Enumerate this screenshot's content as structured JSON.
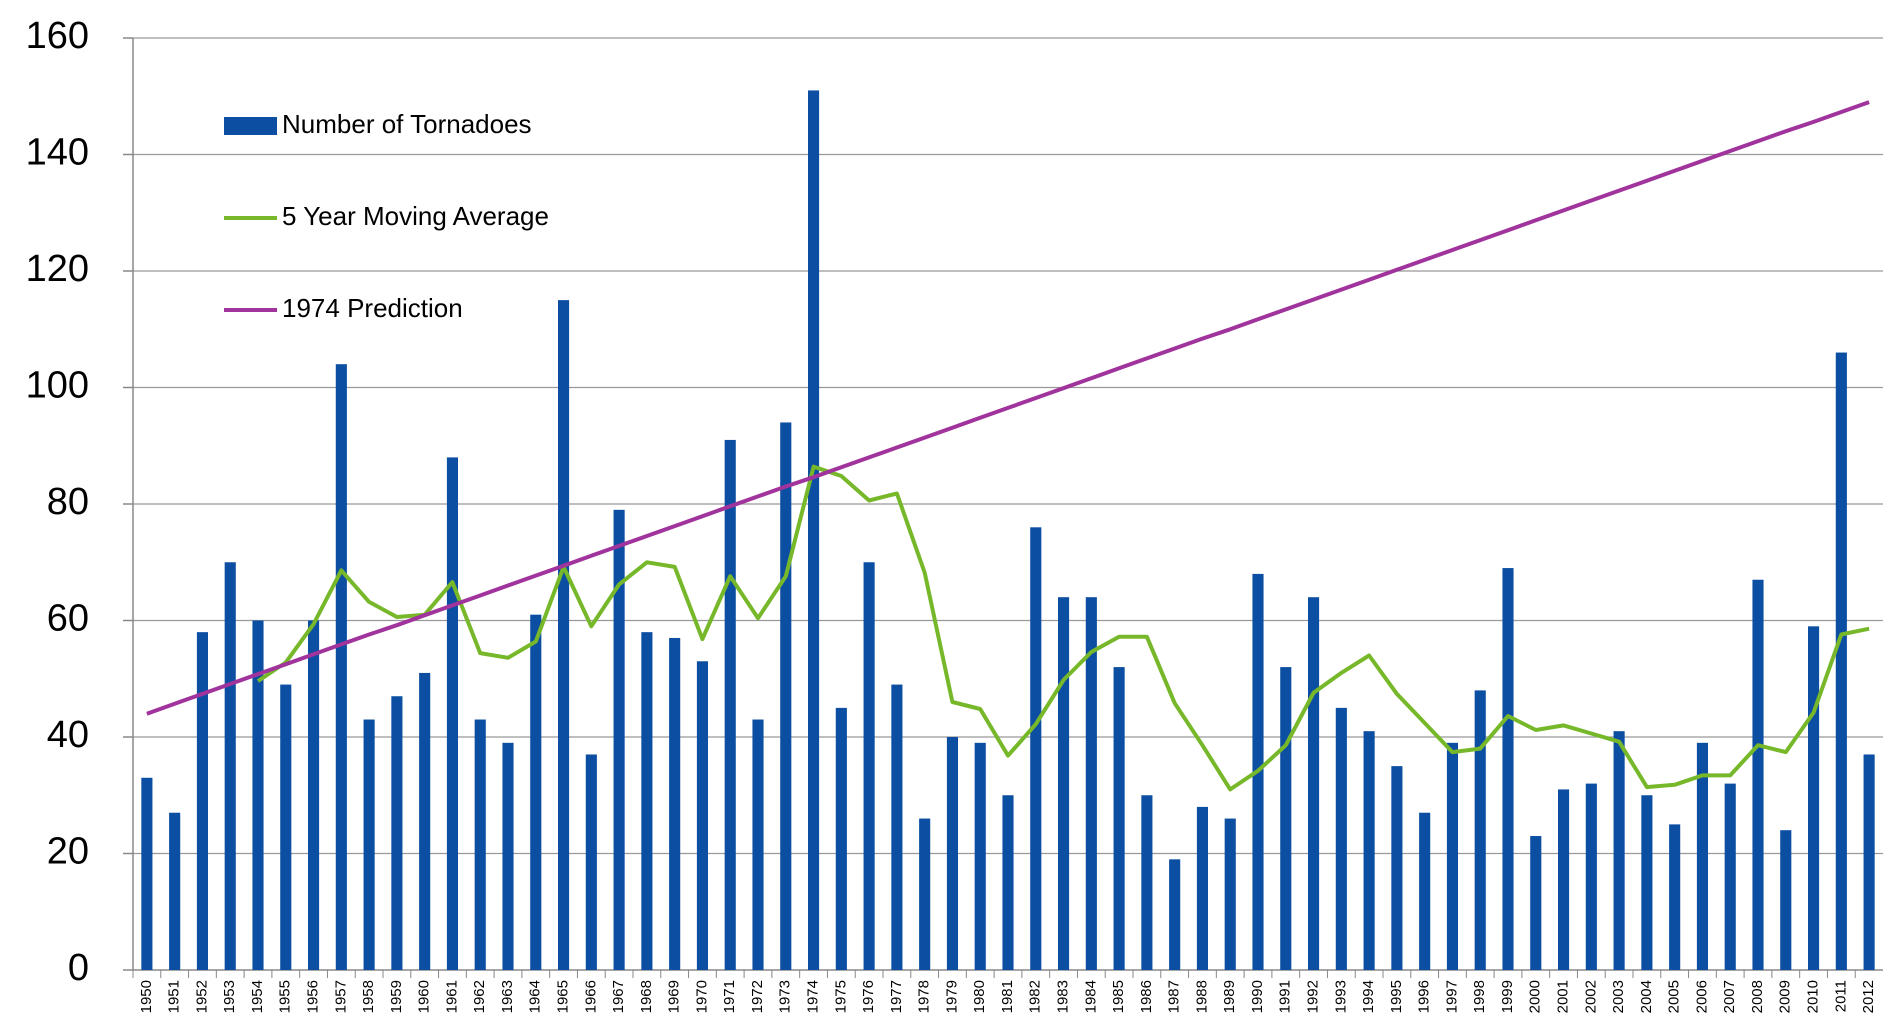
{
  "chart_data": {
    "type": "bar_line",
    "categories": [
      "1950",
      "1951",
      "1952",
      "1953",
      "1954",
      "1955",
      "1956",
      "1957",
      "1958",
      "1959",
      "1960",
      "1961",
      "1962",
      "1963",
      "1964",
      "1965",
      "1966",
      "1967",
      "1968",
      "1969",
      "1970",
      "1971",
      "1972",
      "1973",
      "1974",
      "1975",
      "1976",
      "1977",
      "1978",
      "1979",
      "1980",
      "1981",
      "1982",
      "1983",
      "1984",
      "1985",
      "1986",
      "1987",
      "1988",
      "1989",
      "1990",
      "1991",
      "1992",
      "1993",
      "1994",
      "1995",
      "1996",
      "1997",
      "1998",
      "1999",
      "2000",
      "2001",
      "2002",
      "2003",
      "2004",
      "2005",
      "2006",
      "2007",
      "2008",
      "2009",
      "2010",
      "2011",
      "2012"
    ],
    "series": [
      {
        "name": "Number of Tornadoes",
        "kind": "bar",
        "color": "#0b4ea2",
        "values": [
          33,
          27,
          58,
          70,
          60,
          49,
          60,
          104,
          43,
          47,
          51,
          88,
          43,
          39,
          61,
          115,
          37,
          79,
          58,
          57,
          53,
          91,
          43,
          94,
          151,
          45,
          70,
          49,
          26,
          40,
          39,
          30,
          76,
          64,
          64,
          52,
          30,
          19,
          28,
          26,
          68,
          52,
          64,
          45,
          41,
          35,
          27,
          39,
          48,
          69,
          23,
          31,
          32,
          41,
          30,
          25,
          39,
          32,
          67,
          24,
          59,
          106,
          37
        ]
      },
      {
        "name": "5 Year Moving Average",
        "kind": "line",
        "color": "#77b82a",
        "values": [
          null,
          null,
          null,
          null,
          49.6,
          52.8,
          59.4,
          68.6,
          63.2,
          60.6,
          61,
          66.6,
          54.4,
          53.6,
          56.4,
          69.2,
          59,
          66.2,
          70,
          69.2,
          56.8,
          67.6,
          60.4,
          67.6,
          86.4,
          84.8,
          80.6,
          81.8,
          68.2,
          46,
          44.8,
          36.8,
          42.2,
          49.8,
          54.6,
          57.2,
          57.2,
          45.8,
          38.6,
          31,
          34.2,
          38.6,
          47.6,
          51,
          54,
          47.4,
          42.4,
          37.4,
          38,
          43.6,
          41.2,
          42,
          40.6,
          39.2,
          31.4,
          31.8,
          33.4,
          33.4,
          38.6,
          37.4,
          44.2,
          57.6,
          58.6
        ]
      },
      {
        "name": "1974 Prediction",
        "kind": "line",
        "color": "#a0339c",
        "values": [
          44.0,
          45.7,
          47.4,
          49.1,
          50.8,
          52.5,
          54.2,
          55.9,
          57.6,
          59.2,
          60.9,
          62.6,
          64.3,
          66.0,
          67.7,
          69.4,
          71.1,
          72.8,
          74.5,
          76.2,
          77.9,
          79.6,
          81.3,
          83.0,
          84.6,
          86.3,
          88.0,
          89.7,
          91.4,
          93.1,
          94.8,
          96.5,
          98.2,
          99.9,
          101.6,
          103.3,
          105.0,
          106.7,
          108.4,
          110.0,
          111.7,
          113.4,
          115.1,
          116.8,
          118.5,
          120.2,
          121.9,
          123.6,
          125.3,
          127.0,
          128.7,
          130.4,
          132.1,
          133.8,
          135.5,
          137.2,
          138.9,
          140.6,
          142.3,
          144.0,
          145.6,
          147.3,
          149.0
        ]
      }
    ],
    "ylim": [
      0,
      160
    ],
    "yticks": [
      0,
      20,
      40,
      60,
      80,
      100,
      120,
      140,
      160
    ],
    "grid": true,
    "legend": "upper left"
  }
}
